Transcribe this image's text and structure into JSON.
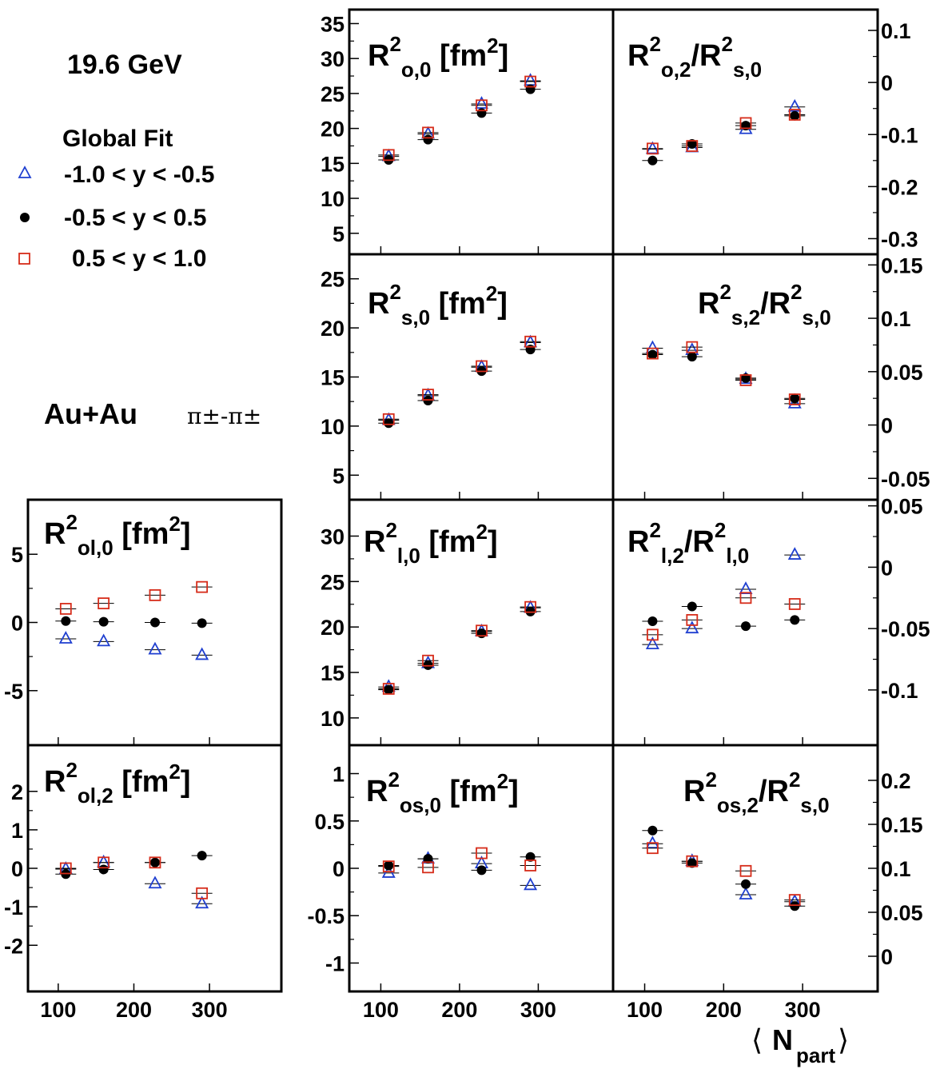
{
  "header": {
    "energy": "19.6 GeV",
    "fit": "Global Fit",
    "system": "Au+Au",
    "pair": "π±-π±"
  },
  "legend": [
    {
      "label": "-1.0 < y < -0.5",
      "marker": "open-triangle",
      "color": "#1f3fd0"
    },
    {
      "label": "-0.5 < y < 0.5",
      "marker": "filled-circle",
      "color": "#000000"
    },
    {
      "label": "0.5 < y < 1.0",
      "marker": "open-square",
      "color": "#d62c1a"
    }
  ],
  "xaxis": {
    "label_base": "N",
    "label_sub": "part",
    "ticks": [
      "100",
      "200",
      "300"
    ]
  },
  "chart_data": [
    {
      "id": "ro0",
      "type": "scatter",
      "title_base": "R",
      "title_sup": "2",
      "title_sub": "o,0",
      "title_unit": "fm",
      "title_unit_sup": "2",
      "ylim": [
        2,
        37
      ],
      "yticks": [
        5,
        10,
        15,
        20,
        25,
        30,
        35
      ],
      "ytick_labels": [
        "5",
        "10",
        "15",
        "20",
        "25",
        "30",
        "35"
      ],
      "axis_side": "left",
      "x": [
        110,
        160,
        228,
        290
      ],
      "series": [
        {
          "values": [
            16.0,
            19.2,
            23.5,
            26.8
          ]
        },
        {
          "values": [
            15.5,
            18.4,
            22.2,
            25.6
          ]
        },
        {
          "values": [
            16.2,
            19.4,
            23.3,
            26.7
          ]
        }
      ]
    },
    {
      "id": "ro2",
      "type": "scatter",
      "title_base": "R",
      "title_sup": "2",
      "title_sub": "o,2",
      "title_base2": "R",
      "title_sup2": "2",
      "title_sub2": "s,0",
      "ylim": [
        -0.33,
        0.14
      ],
      "yticks": [
        -0.3,
        -0.2,
        -0.1,
        0,
        0.1
      ],
      "ytick_labels": [
        "-0.3",
        "-0.2",
        "-0.1",
        "0",
        "0.1"
      ],
      "axis_side": "right",
      "x": [
        110,
        160,
        228,
        290
      ],
      "series": [
        {
          "values": [
            -0.128,
            -0.125,
            -0.09,
            -0.047
          ]
        },
        {
          "values": [
            -0.15,
            -0.118,
            -0.083,
            -0.064
          ]
        },
        {
          "values": [
            -0.127,
            -0.122,
            -0.078,
            -0.062
          ]
        }
      ]
    },
    {
      "id": "rs0",
      "type": "scatter",
      "title_base": "R",
      "title_sup": "2",
      "title_sub": "s,0",
      "title_unit": "fm",
      "title_unit_sup": "2",
      "ylim": [
        2.5,
        27.5
      ],
      "yticks": [
        5,
        10,
        15,
        20,
        25
      ],
      "ytick_labels": [
        "5",
        "10",
        "15",
        "20",
        "25"
      ],
      "axis_side": "left",
      "x": [
        110,
        160,
        228,
        290
      ],
      "series": [
        {
          "values": [
            10.6,
            13.1,
            16.0,
            18.5
          ]
        },
        {
          "values": [
            10.3,
            12.6,
            15.6,
            17.8
          ]
        },
        {
          "values": [
            10.7,
            13.2,
            16.1,
            18.6
          ]
        }
      ]
    },
    {
      "id": "rs2",
      "type": "scatter",
      "title_base": "R",
      "title_sup": "2",
      "title_sub": "s,2",
      "title_base2": "R",
      "title_sup2": "2",
      "title_sub2": "s,0",
      "ylim": [
        -0.07,
        0.16
      ],
      "yticks": [
        -0.05,
        0,
        0.05,
        0.1,
        0.15
      ],
      "ytick_labels": [
        "-0.05",
        "0",
        "0.05",
        "0.1",
        "0.15"
      ],
      "axis_side": "right",
      "x": [
        110,
        160,
        228,
        290
      ],
      "series": [
        {
          "values": [
            0.072,
            0.07,
            0.043,
            0.02
          ]
        },
        {
          "values": [
            0.066,
            0.064,
            0.044,
            0.025
          ]
        },
        {
          "values": [
            0.067,
            0.073,
            0.042,
            0.024
          ]
        }
      ]
    },
    {
      "id": "rl0",
      "type": "scatter",
      "title_base": "R",
      "title_sup": "2",
      "title_sub": "l,0",
      "title_unit": "fm",
      "title_unit_sup": "2",
      "ylim": [
        7,
        34
      ],
      "yticks": [
        10,
        15,
        20,
        25,
        30
      ],
      "ytick_labels": [
        "10",
        "15",
        "20",
        "25",
        "30"
      ],
      "axis_side": "left",
      "x": [
        110,
        160,
        228,
        290
      ],
      "series": [
        {
          "values": [
            13.4,
            16.0,
            19.5,
            22.1
          ]
        },
        {
          "values": [
            13.1,
            15.8,
            19.3,
            21.7
          ]
        },
        {
          "values": [
            13.2,
            16.3,
            19.6,
            22.2
          ]
        }
      ]
    },
    {
      "id": "rl2",
      "type": "scatter",
      "title_base": "R",
      "title_sup": "2",
      "title_sub": "l,2",
      "title_base2": "R",
      "title_sup2": "2",
      "title_sub2": "l,0",
      "ylim": [
        -0.145,
        0.055
      ],
      "yticks": [
        -0.1,
        -0.05,
        0,
        0.05
      ],
      "ytick_labels": [
        "-0.1",
        "-0.05",
        "0",
        "0.05"
      ],
      "axis_side": "right",
      "x": [
        110,
        160,
        228,
        290
      ],
      "series": [
        {
          "values": [
            -0.063,
            -0.05,
            -0.018,
            0.01
          ]
        },
        {
          "values": [
            -0.044,
            -0.032,
            -0.048,
            -0.043
          ]
        },
        {
          "values": [
            -0.055,
            -0.043,
            -0.025,
            -0.03
          ]
        }
      ]
    },
    {
      "id": "ros0",
      "type": "scatter",
      "title_base": "R",
      "title_sup": "2",
      "title_sub": "os,0",
      "title_unit": "fm",
      "title_unit_sup": "2",
      "ylim": [
        -1.3,
        1.3
      ],
      "yticks": [
        -1,
        -0.5,
        0,
        0.5,
        1
      ],
      "ytick_labels": [
        "-1",
        "-0.5",
        "0",
        "0.5",
        "1"
      ],
      "axis_side": "left",
      "x": [
        110,
        160,
        228,
        290
      ],
      "series": [
        {
          "values": [
            -0.05,
            0.1,
            0.05,
            -0.18
          ]
        },
        {
          "values": [
            0.03,
            0.1,
            -0.02,
            0.12
          ]
        },
        {
          "values": [
            0.02,
            0.01,
            0.16,
            0.03
          ]
        }
      ]
    },
    {
      "id": "ros2",
      "type": "scatter",
      "title_base": "R",
      "title_sup": "2",
      "title_sub": "os,2",
      "title_base2": "R",
      "title_sup2": "2",
      "title_sub2": "s,0",
      "ylim": [
        -0.04,
        0.24
      ],
      "yticks": [
        0,
        0.05,
        0.1,
        0.15,
        0.2
      ],
      "ytick_labels": [
        "0",
        "0.05",
        "0.1",
        "0.15",
        "0.2"
      ],
      "axis_side": "right",
      "x": [
        110,
        160,
        228,
        290
      ],
      "series": [
        {
          "values": [
            0.128,
            0.108,
            0.07,
            0.062
          ]
        },
        {
          "values": [
            0.143,
            0.106,
            0.082,
            0.057
          ]
        },
        {
          "values": [
            0.123,
            0.108,
            0.097,
            0.064
          ]
        }
      ]
    },
    {
      "id": "rol0",
      "type": "scatter",
      "title_base": "R",
      "title_sup": "2",
      "title_sub": "ol,0",
      "title_unit": "fm",
      "title_unit_sup": "2",
      "ylim": [
        -9,
        9
      ],
      "yticks": [
        -5,
        0,
        5
      ],
      "ytick_labels": [
        "-5",
        "0",
        "5"
      ],
      "axis_side": "left",
      "x": [
        110,
        160,
        228,
        290
      ],
      "series": [
        {
          "values": [
            -1.2,
            -1.4,
            -2.0,
            -2.4
          ]
        },
        {
          "values": [
            0.1,
            0.05,
            0.0,
            -0.05
          ]
        },
        {
          "values": [
            1.0,
            1.4,
            2.0,
            2.6
          ]
        }
      ]
    },
    {
      "id": "rol2",
      "type": "scatter",
      "title_base": "R",
      "title_sup": "2",
      "title_sub": "ol,2",
      "title_unit": "fm",
      "title_unit_sup": "2",
      "ylim": [
        -3.2,
        3.2
      ],
      "yticks": [
        -2,
        -1,
        0,
        1,
        2
      ],
      "ytick_labels": [
        "-2",
        "-1",
        "0",
        "1",
        "2"
      ],
      "axis_side": "left",
      "x": [
        110,
        160,
        228,
        290
      ],
      "series": [
        {
          "values": [
            -0.02,
            0.15,
            -0.4,
            -0.92
          ]
        },
        {
          "values": [
            -0.15,
            -0.03,
            0.15,
            0.33
          ]
        },
        {
          "values": [
            0.0,
            0.15,
            0.15,
            -0.65
          ]
        }
      ]
    }
  ]
}
